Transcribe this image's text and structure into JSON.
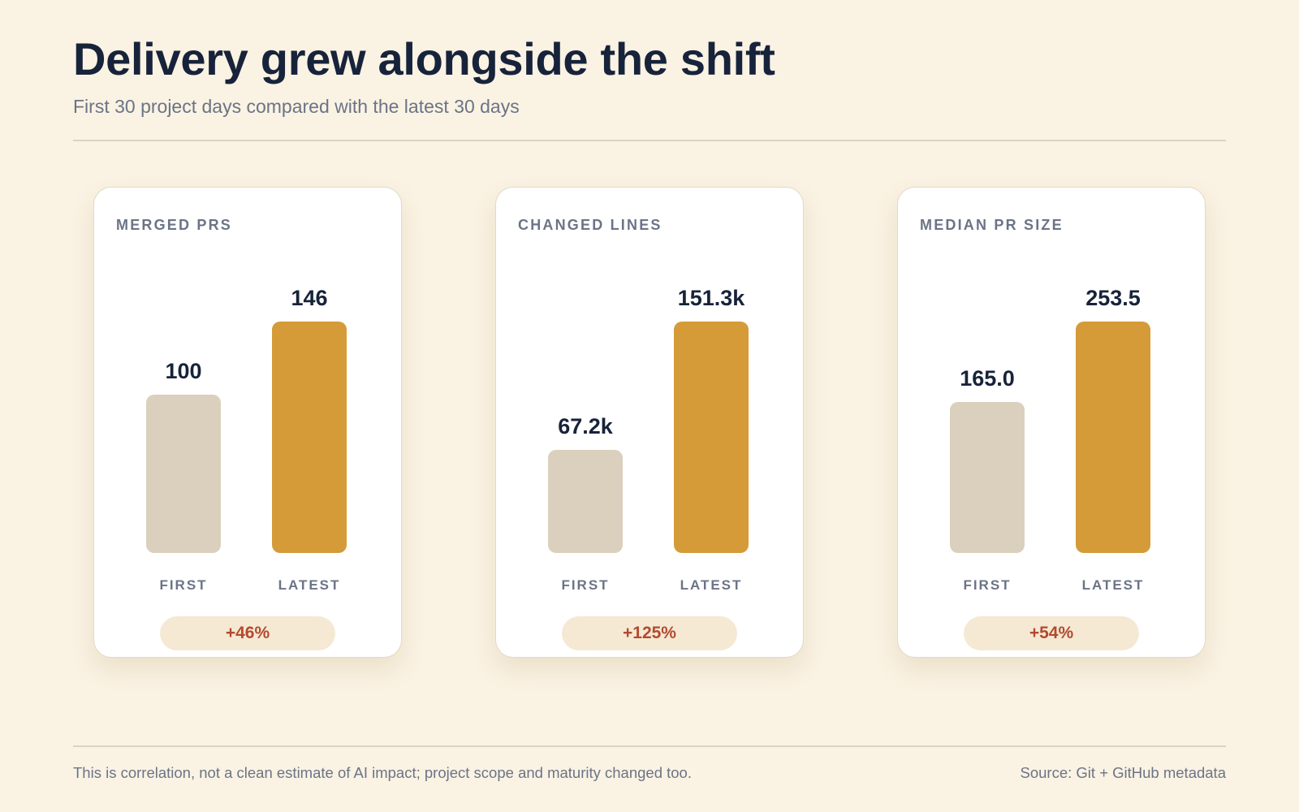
{
  "header": {
    "title": "Delivery grew alongside the shift",
    "subtitle": "First 30 project days compared with the latest 30 days"
  },
  "footer": {
    "note": "This is correlation, not a clean estimate of AI impact; project scope and maturity changed too.",
    "source": "Source: Git + GitHub metadata"
  },
  "colors": {
    "background": "#faf2e3",
    "first_bar": "#dad0bd",
    "latest_bar": "#d59b38",
    "change_text": "#b34a2e",
    "change_pill": "#f5e9d4"
  },
  "chart_data": [
    {
      "type": "bar",
      "title": "MERGED PRS",
      "categories": [
        "FIRST",
        "LATEST"
      ],
      "values": [
        100,
        146
      ],
      "value_labels": [
        "100",
        "146"
      ],
      "change": "+46%"
    },
    {
      "type": "bar",
      "title": "CHANGED LINES",
      "categories": [
        "FIRST",
        "LATEST"
      ],
      "values": [
        67200,
        151300
      ],
      "value_labels": [
        "67.2k",
        "151.3k"
      ],
      "change": "+125%"
    },
    {
      "type": "bar",
      "title": "MEDIAN PR SIZE",
      "categories": [
        "FIRST",
        "LATEST"
      ],
      "values": [
        165.0,
        253.5
      ],
      "value_labels": [
        "165.0",
        "253.5"
      ],
      "change": "+54%"
    }
  ]
}
